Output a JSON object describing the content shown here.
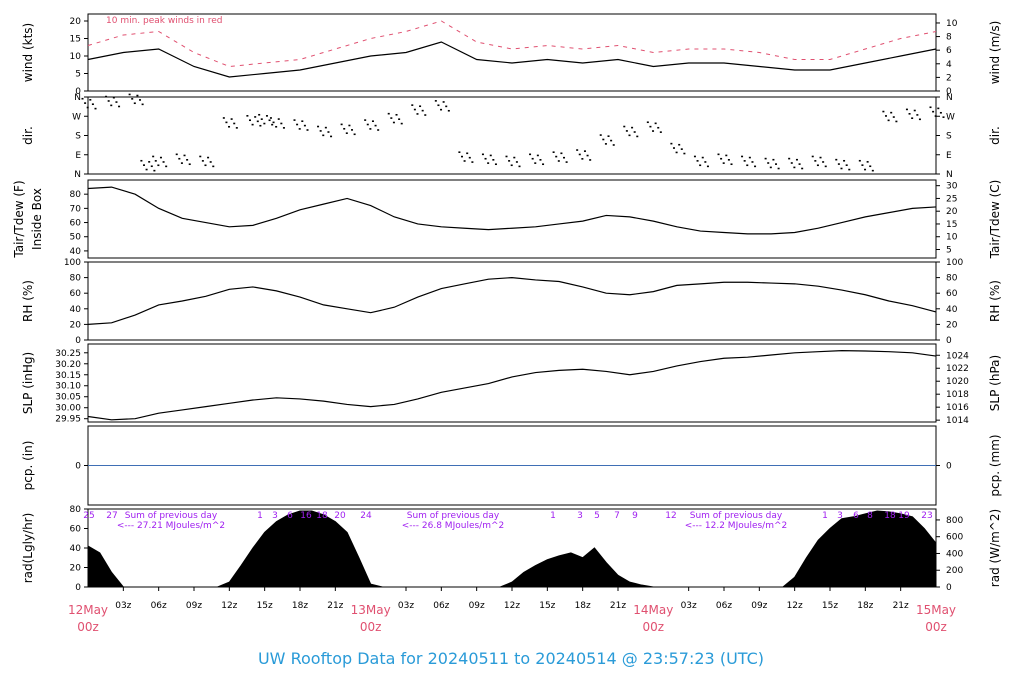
{
  "chart_data": {
    "type": "line",
    "title": "UW Rooftop Data for 20240511  to  20240514 @ 23:57:23  (UTC)",
    "x_axis": {
      "hour_ticks": [
        "03z",
        "06z",
        "09z",
        "12z",
        "15z",
        "18z",
        "21z",
        "03z",
        "06z",
        "09z",
        "12z",
        "15z",
        "18z",
        "21z",
        "03z",
        "06z",
        "09z",
        "12z",
        "15z",
        "18z",
        "21z"
      ],
      "day_labels": [
        {
          "date": "12May",
          "time": "00z"
        },
        {
          "date": "13May",
          "time": "00z"
        },
        {
          "date": "14May",
          "time": "00z"
        },
        {
          "date": "15May",
          "time": "00z"
        }
      ]
    },
    "panels": [
      {
        "id": "wind",
        "ylabel_left": "wind (kts)",
        "ylabel_right": "wind (m/s)",
        "left_ticks": [
          "0",
          "5",
          "10",
          "15",
          "20"
        ],
        "left_range": [
          0,
          22
        ],
        "right_ticks": [
          "0",
          "2",
          "4",
          "6",
          "8",
          "10"
        ],
        "annotation": "10 min. peak winds in red",
        "series": [
          {
            "name": "wind",
            "x": [
              0,
              3,
              6,
              9,
              12,
              15,
              18,
              21,
              24,
              27,
              30,
              33,
              36,
              39,
              42,
              45,
              48,
              51,
              54,
              57,
              60,
              63,
              66,
              69,
              72
            ],
            "y": [
              9,
              11,
              12,
              7,
              4,
              5,
              6,
              8,
              10,
              11,
              14,
              9,
              8,
              9,
              8,
              9,
              7,
              8,
              8,
              7,
              6,
              6,
              8,
              10,
              12
            ]
          },
          {
            "name": "peak",
            "x": [
              0,
              3,
              6,
              9,
              12,
              15,
              18,
              21,
              24,
              27,
              30,
              33,
              36,
              39,
              42,
              45,
              48,
              51,
              54,
              57,
              60,
              63,
              66,
              69,
              72
            ],
            "y": [
              13,
              16,
              17,
              11,
              7,
              8,
              9,
              12,
              15,
              17,
              20,
              14,
              12,
              13,
              12,
              13,
              11,
              12,
              12,
              11,
              9,
              9,
              12,
              15,
              17
            ]
          }
        ]
      },
      {
        "id": "dir",
        "ylabel_left": "dir.",
        "ylabel_right": "dir.",
        "left_ticks": [
          "N",
          "E",
          "S",
          "W",
          "N"
        ],
        "right_ticks": [
          "N",
          "E",
          "S",
          "W",
          "N"
        ],
        "left_range": [
          0,
          360
        ],
        "series": [
          {
            "name": "dir",
            "x": [
              0,
              2,
              4,
              5,
              6,
              8,
              10,
              12,
              14,
              15,
              16,
              18,
              20,
              22,
              24,
              26,
              28,
              30,
              32,
              34,
              36,
              38,
              40,
              42,
              44,
              46,
              48,
              50,
              52,
              54,
              56,
              58,
              60,
              62,
              64,
              66,
              68,
              70,
              72
            ],
            "y": [
              330,
              340,
              350,
              40,
              60,
              70,
              60,
              240,
              250,
              255,
              240,
              230,
              200,
              210,
              230,
              260,
              300,
              320,
              80,
              70,
              60,
              70,
              80,
              90,
              160,
              200,
              220,
              120,
              60,
              70,
              60,
              50,
              50,
              60,
              45,
              40,
              270,
              280,
              290
            ]
          }
        ]
      },
      {
        "id": "temp",
        "ylabel_left": "Tair/Tdew (F)\nInside Box",
        "ylabel_right": "Tair/Tdew (C)",
        "left_ticks": [
          "40",
          "50",
          "60",
          "70",
          "80"
        ],
        "left_range": [
          35,
          90
        ],
        "right_ticks": [
          "5",
          "10",
          "15",
          "20",
          "25",
          "30"
        ],
        "series": [
          {
            "name": "Tair",
            "x": [
              0,
              2,
              4,
              6,
              8,
              10,
              12,
              14,
              16,
              18,
              20,
              22,
              24,
              26,
              28,
              30,
              32,
              34,
              36,
              38,
              40,
              42,
              44,
              46,
              48,
              50,
              52,
              54,
              56,
              58,
              60,
              62,
              64,
              66,
              68,
              70,
              72
            ],
            "y": [
              84,
              85,
              80,
              70,
              63,
              60,
              57,
              58,
              63,
              69,
              73,
              77,
              72,
              64,
              59,
              57,
              56,
              55,
              56,
              57,
              59,
              61,
              65,
              64,
              61,
              57,
              54,
              53,
              52,
              52,
              53,
              56,
              60,
              64,
              67,
              70,
              71
            ]
          }
        ]
      },
      {
        "id": "rh",
        "ylabel_left": "RH (%)",
        "ylabel_right": "RH (%)",
        "left_ticks": [
          "0",
          "20",
          "40",
          "60",
          "80",
          "100"
        ],
        "left_range": [
          0,
          100
        ],
        "right_ticks": [
          "0",
          "20",
          "40",
          "60",
          "80",
          "100"
        ],
        "series": [
          {
            "name": "RH",
            "x": [
              0,
              2,
              4,
              6,
              8,
              10,
              12,
              14,
              16,
              18,
              20,
              22,
              24,
              26,
              28,
              30,
              32,
              34,
              36,
              38,
              40,
              42,
              44,
              46,
              48,
              50,
              52,
              54,
              56,
              58,
              60,
              62,
              64,
              66,
              68,
              70,
              72
            ],
            "y": [
              20,
              22,
              32,
              45,
              50,
              56,
              65,
              68,
              63,
              55,
              45,
              40,
              35,
              42,
              55,
              66,
              72,
              78,
              80,
              77,
              75,
              68,
              60,
              58,
              62,
              70,
              72,
              74,
              74,
              73,
              72,
              69,
              64,
              58,
              50,
              44,
              36
            ]
          }
        ]
      },
      {
        "id": "slp",
        "ylabel_left": "SLP (inHg)",
        "ylabel_right": "SLP (hPa)",
        "left_ticks": [
          "29.95",
          "30.00",
          "30.05",
          "30.10",
          "30.15",
          "30.20",
          "30.25"
        ],
        "left_range": [
          29.935,
          30.29
        ],
        "right_ticks": [
          "1014",
          "1016",
          "1018",
          "1020",
          "1022",
          "1024"
        ],
        "series": [
          {
            "name": "SLP",
            "x": [
              0,
              2,
              4,
              6,
              8,
              10,
              12,
              14,
              16,
              18,
              20,
              22,
              24,
              26,
              28,
              30,
              32,
              34,
              36,
              38,
              40,
              42,
              44,
              46,
              48,
              50,
              52,
              54,
              56,
              58,
              60,
              62,
              64,
              66,
              68,
              70,
              72
            ],
            "y": [
              29.96,
              29.945,
              29.95,
              29.975,
              29.99,
              30.005,
              30.02,
              30.035,
              30.045,
              30.04,
              30.03,
              30.015,
              30.005,
              30.015,
              30.04,
              30.07,
              30.09,
              30.11,
              30.14,
              30.16,
              30.17,
              30.175,
              30.165,
              30.15,
              30.165,
              30.19,
              30.21,
              30.225,
              30.23,
              30.24,
              30.25,
              30.255,
              30.26,
              30.258,
              30.255,
              30.25,
              30.235
            ]
          }
        ]
      },
      {
        "id": "pcp",
        "ylabel_left": "pcp. (in)",
        "ylabel_right": "pcp. (mm)",
        "left_ticks": [
          "0"
        ],
        "right_ticks": [
          "0"
        ],
        "left_range": [
          -1,
          1
        ],
        "series": [
          {
            "name": "pcp",
            "x": [
              0,
              72
            ],
            "y": [
              0,
              0
            ]
          }
        ]
      },
      {
        "id": "rad",
        "ylabel_left": "rad(Lgly/hr)",
        "ylabel_right": "rad (W/m^2)",
        "left_ticks": [
          "0",
          "20",
          "40",
          "60",
          "80"
        ],
        "left_range": [
          0,
          80
        ],
        "right_ticks": [
          "0",
          "200",
          "400",
          "600",
          "800"
        ],
        "hour_marks": [
          "25",
          "27",
          "1",
          "3",
          "6",
          "16",
          "18",
          "20",
          "24",
          "1",
          "3",
          "5",
          "7",
          "9",
          "12",
          "1",
          "3",
          "6",
          "8",
          "18",
          "19",
          "23"
        ],
        "notes": [
          {
            "line1": "Sum of previous day",
            "line2": "<--- 27.21 MJoules/m^2"
          },
          {
            "line1": "Sum of previous day",
            "line2": "<--- 26.8 MJoules/m^2"
          },
          {
            "line1": "Sum of previous day",
            "line2": "<--- 12.2 MJoules/m^2"
          }
        ],
        "series": [
          {
            "name": "rad",
            "x": [
              0,
              1,
              2,
              3,
              11,
              12,
              13,
              14,
              15,
              16,
              17,
              18,
              19,
              20,
              21,
              22,
              23,
              24,
              25,
              26,
              35,
              36,
              37,
              38,
              39,
              40,
              41,
              42,
              43,
              44,
              45,
              46,
              47,
              48,
              59,
              60,
              61,
              62,
              63,
              64,
              65,
              66,
              67,
              68,
              69,
              70,
              71,
              72
            ],
            "y": [
              42,
              35,
              15,
              0,
              0,
              5,
              22,
              40,
              56,
              67,
              74,
              78,
              78,
              74,
              67,
              56,
              30,
              3,
              0,
              0,
              0,
              5,
              15,
              22,
              28,
              32,
              35,
              30,
              40,
              25,
              12,
              5,
              2,
              0,
              0,
              10,
              30,
              48,
              60,
              70,
              72,
              75,
              78,
              77,
              75,
              72,
              60,
              45
            ]
          }
        ]
      }
    ]
  }
}
